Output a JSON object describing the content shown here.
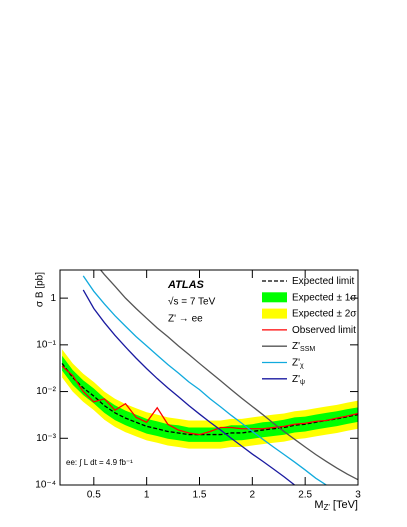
{
  "chart_data": {
    "type": "line",
    "log_y": true,
    "x_label": "M",
    "x_label_sub": "Z'",
    "x_label_unit": "[TeV]",
    "y_label": "σ B [pb]",
    "annotations": [
      "ATLAS",
      "√s = 7 TeV",
      "Z' → ee",
      "ee: ∫ L dt = 4.9 fb⁻¹"
    ],
    "x": [
      0.2,
      0.3,
      0.4,
      0.5,
      0.6,
      0.7,
      0.8,
      0.9,
      1.0,
      1.1,
      1.2,
      1.3,
      1.4,
      1.5,
      1.6,
      1.7,
      1.8,
      1.9,
      2.0,
      2.1,
      2.2,
      2.3,
      2.4,
      2.5,
      2.6,
      2.7,
      2.8,
      2.9,
      3.0
    ],
    "xlim": [
      0.18,
      3
    ],
    "xticks": [
      0.5,
      1,
      1.5,
      2,
      2.5,
      3
    ],
    "ylim": [
      0.0001,
      4
    ],
    "yticks": [
      {
        "value": 0.0001,
        "label": "10⁻⁴"
      },
      {
        "value": 0.001,
        "label": "10⁻³"
      },
      {
        "value": 0.01,
        "label": "10⁻²"
      },
      {
        "value": 0.1,
        "label": "10⁻¹"
      },
      1
    ],
    "legend": "top-right",
    "series": [
      {
        "name": "Expected limit",
        "kind": "line",
        "dashed": true,
        "color": "#000000",
        "values": [
          0.04,
          0.02,
          0.012,
          0.008,
          0.005,
          0.0035,
          0.0027,
          0.0022,
          0.0018,
          0.0016,
          0.0014,
          0.0013,
          0.0012,
          0.0012,
          0.0012,
          0.0012,
          0.0013,
          0.0013,
          0.0014,
          0.0015,
          0.0016,
          0.0017,
          0.0019,
          0.002,
          0.0022,
          0.0024,
          0.0026,
          0.0029,
          0.0032
        ]
      },
      {
        "name": "Expected ± 1σ",
        "kind": "band",
        "color": "#00ff00",
        "low": [
          0.028,
          0.014,
          0.0084,
          0.0056,
          0.0035,
          0.00245,
          0.0019,
          0.00154,
          0.00126,
          0.00112,
          0.00098,
          0.00091,
          0.00084,
          0.00084,
          0.00084,
          0.00084,
          0.00091,
          0.00091,
          0.00098,
          0.00105,
          0.00112,
          0.00119,
          0.00133,
          0.0014,
          0.00154,
          0.00168,
          0.00182,
          0.00203,
          0.00224
        ],
        "high": [
          0.058,
          0.029,
          0.0174,
          0.0116,
          0.00725,
          0.0051,
          0.0039,
          0.0032,
          0.0026,
          0.0023,
          0.002,
          0.0019,
          0.0017,
          0.0017,
          0.0017,
          0.0017,
          0.0019,
          0.0019,
          0.002,
          0.0022,
          0.0023,
          0.0025,
          0.0028,
          0.0029,
          0.0032,
          0.0035,
          0.0038,
          0.0042,
          0.0046
        ]
      },
      {
        "name": "Expected ± 2σ",
        "kind": "band",
        "color": "#ffff00",
        "low": [
          0.02,
          0.01,
          0.006,
          0.004,
          0.0025,
          0.00175,
          0.00135,
          0.0011,
          0.0009,
          0.0008,
          0.0007,
          0.00065,
          0.0006,
          0.0006,
          0.0006,
          0.0006,
          0.00065,
          0.00065,
          0.0007,
          0.00075,
          0.0008,
          0.00085,
          0.00095,
          0.001,
          0.0011,
          0.0012,
          0.0013,
          0.00145,
          0.0016
        ],
        "high": [
          0.08,
          0.04,
          0.024,
          0.016,
          0.01,
          0.007,
          0.0054,
          0.0044,
          0.0036,
          0.0032,
          0.0028,
          0.0026,
          0.0024,
          0.0024,
          0.0024,
          0.0024,
          0.0026,
          0.0026,
          0.0028,
          0.003,
          0.0032,
          0.0034,
          0.0038,
          0.004,
          0.0044,
          0.0048,
          0.0052,
          0.0058,
          0.0064
        ]
      },
      {
        "name": "Observed limit",
        "kind": "line",
        "color": "#ff0000",
        "values": [
          0.035,
          0.022,
          0.01,
          0.006,
          0.007,
          0.004,
          0.0055,
          0.0028,
          0.0022,
          0.0045,
          0.002,
          0.0015,
          0.0013,
          0.0012,
          0.0014,
          0.0017,
          0.0017,
          0.0016,
          0.0016,
          0.0016,
          0.0017,
          0.0018,
          0.002,
          0.0021,
          0.0023,
          0.0024,
          0.0027,
          0.003,
          0.0034
        ]
      },
      {
        "name": "Z'",
        "name_sub": "SSM",
        "kind": "line",
        "color": "#555555",
        "values": [
          null,
          null,
          null,
          6,
          3.2,
          1.8,
          1.0,
          0.6,
          0.37,
          0.23,
          0.15,
          0.095,
          0.062,
          0.04,
          0.026,
          0.017,
          0.011,
          0.0072,
          0.0048,
          0.0032,
          0.0021,
          0.0014,
          0.00095,
          0.00065,
          0.00045,
          0.00032,
          0.00023,
          0.00017,
          0.00013
        ]
      },
      {
        "name": "Z'",
        "name_sub": "χ",
        "kind": "line",
        "color": "#11aadd",
        "values": [
          null,
          null,
          3,
          1.4,
          0.75,
          0.42,
          0.25,
          0.15,
          0.095,
          0.06,
          0.038,
          0.025,
          0.016,
          0.011,
          0.007,
          0.0047,
          0.0031,
          0.0021,
          0.0014,
          0.00095,
          0.00065,
          0.00045,
          0.00031,
          0.00021,
          0.00014,
          0.0001,
          null,
          null,
          null
        ]
      },
      {
        "name": "Z'",
        "name_sub": "ψ",
        "kind": "line",
        "color": "#1a1aa0",
        "values": [
          null,
          null,
          1.5,
          0.6,
          0.3,
          0.16,
          0.09,
          0.052,
          0.031,
          0.019,
          0.012,
          0.0078,
          0.005,
          0.0033,
          0.0022,
          0.0015,
          0.001,
          0.00068,
          0.00046,
          0.00032,
          0.00022,
          0.00015,
          0.0001,
          null,
          null,
          null,
          null,
          null,
          null
        ]
      }
    ]
  }
}
